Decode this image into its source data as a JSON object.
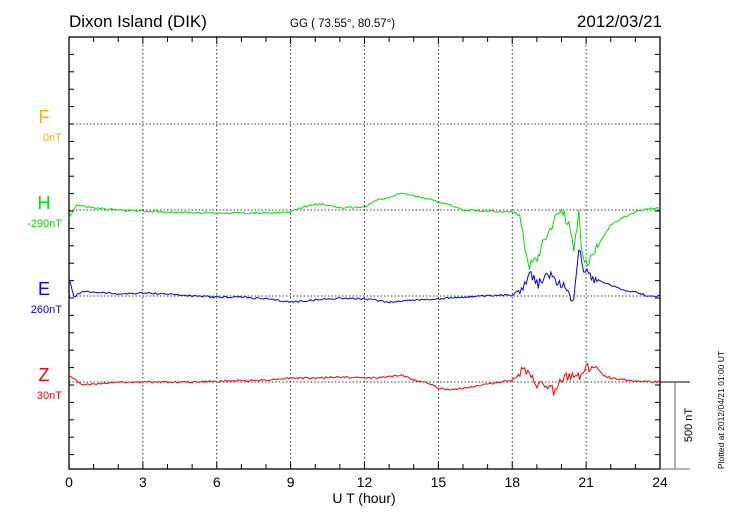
{
  "chart_data": {
    "type": "line",
    "title": "Dixon Island (DIK)",
    "subtitle": "GG ( 73.55°,  80.57°)",
    "date": "2012/03/21",
    "xlabel": "U T (hour)",
    "xlim": [
      0,
      24
    ],
    "xticks": [
      "0",
      "3",
      "6",
      "9",
      "12",
      "15",
      "18",
      "21",
      "24"
    ],
    "scale_label": "500 nT",
    "plotted_note": "Plotted at 2012/04/21 01:00 UT",
    "grid": true,
    "series": [
      {
        "name": "F",
        "baseline_label": "0nT",
        "color": "#ffb000",
        "points": []
      },
      {
        "name": "H",
        "baseline_label": "-290nT",
        "color": "#00e000",
        "points": [
          [
            0,
            -46
          ],
          [
            0.3,
            29
          ],
          [
            1,
            12
          ],
          [
            2,
            0
          ],
          [
            4,
            -12
          ],
          [
            6,
            -17
          ],
          [
            8,
            -17
          ],
          [
            9,
            -12
          ],
          [
            9.5,
            17
          ],
          [
            10,
            35
          ],
          [
            10.5,
            29
          ],
          [
            11,
            12
          ],
          [
            12,
            17
          ],
          [
            12.5,
            58
          ],
          [
            13,
            69
          ],
          [
            13.5,
            98
          ],
          [
            14,
            81
          ],
          [
            14.5,
            69
          ],
          [
            15,
            46
          ],
          [
            15.5,
            29
          ],
          [
            16,
            0
          ],
          [
            17,
            -6
          ],
          [
            18,
            -12
          ],
          [
            18.3,
            -29
          ],
          [
            18.5,
            -201
          ],
          [
            18.7,
            -316
          ],
          [
            19,
            -276
          ],
          [
            19.3,
            -172
          ],
          [
            19.6,
            -86
          ],
          [
            19.8,
            -29
          ],
          [
            20,
            0
          ],
          [
            20.3,
            -86
          ],
          [
            20.5,
            -230
          ],
          [
            20.7,
            -29
          ],
          [
            20.8,
            -201
          ],
          [
            21,
            -316
          ],
          [
            21.3,
            -258
          ],
          [
            21.6,
            -172
          ],
          [
            22,
            -86
          ],
          [
            22.5,
            -46
          ],
          [
            23,
            -12
          ],
          [
            23.5,
            6
          ],
          [
            24,
            12
          ]
        ]
      },
      {
        "name": "E",
        "baseline_label": "260nT",
        "color": "#0000ff",
        "points": [
          [
            0,
            104
          ],
          [
            0.2,
            -6
          ],
          [
            0.5,
            23
          ],
          [
            1,
            23
          ],
          [
            2,
            12
          ],
          [
            3,
            17
          ],
          [
            4,
            12
          ],
          [
            5,
            0
          ],
          [
            6,
            -6
          ],
          [
            7,
            -6
          ],
          [
            8,
            -17
          ],
          [
            9,
            -35
          ],
          [
            10,
            -23
          ],
          [
            11,
            -12
          ],
          [
            12,
            -17
          ],
          [
            13,
            -35
          ],
          [
            14,
            -23
          ],
          [
            15,
            -17
          ],
          [
            16,
            -6
          ],
          [
            17,
            0
          ],
          [
            18,
            6
          ],
          [
            18.5,
            63
          ],
          [
            18.7,
            150
          ],
          [
            19,
            63
          ],
          [
            19.4,
            121
          ],
          [
            19.8,
            92
          ],
          [
            20.2,
            35
          ],
          [
            20.5,
            -23
          ],
          [
            20.6,
            150
          ],
          [
            20.7,
            293
          ],
          [
            20.9,
            150
          ],
          [
            21.1,
            121
          ],
          [
            21.5,
            92
          ],
          [
            22,
            63
          ],
          [
            22.5,
            35
          ],
          [
            23,
            23
          ],
          [
            23.5,
            0
          ],
          [
            24,
            0
          ]
        ]
      },
      {
        "name": "Z",
        "baseline_label": "30nT",
        "color": "#ff0000",
        "points": [
          [
            0,
            35
          ],
          [
            0.5,
            -12
          ],
          [
            1,
            -12
          ],
          [
            2,
            0
          ],
          [
            5,
            0
          ],
          [
            8,
            12
          ],
          [
            9,
            23
          ],
          [
            10,
            23
          ],
          [
            11,
            29
          ],
          [
            12,
            23
          ],
          [
            13,
            29
          ],
          [
            13.5,
            40
          ],
          [
            14,
            12
          ],
          [
            14.5,
            0
          ],
          [
            15,
            -35
          ],
          [
            15.5,
            -46
          ],
          [
            16,
            -35
          ],
          [
            17,
            -12
          ],
          [
            18,
            12
          ],
          [
            18.5,
            69
          ],
          [
            18.7,
            23
          ],
          [
            19,
            -12
          ],
          [
            19.5,
            -35
          ],
          [
            19.8,
            -58
          ],
          [
            20,
            12
          ],
          [
            20.5,
            40
          ],
          [
            20.8,
            40
          ],
          [
            21,
            81
          ],
          [
            21.3,
            92
          ],
          [
            21.7,
            40
          ],
          [
            22,
            23
          ],
          [
            23,
            6
          ],
          [
            24,
            0
          ]
        ]
      }
    ]
  }
}
